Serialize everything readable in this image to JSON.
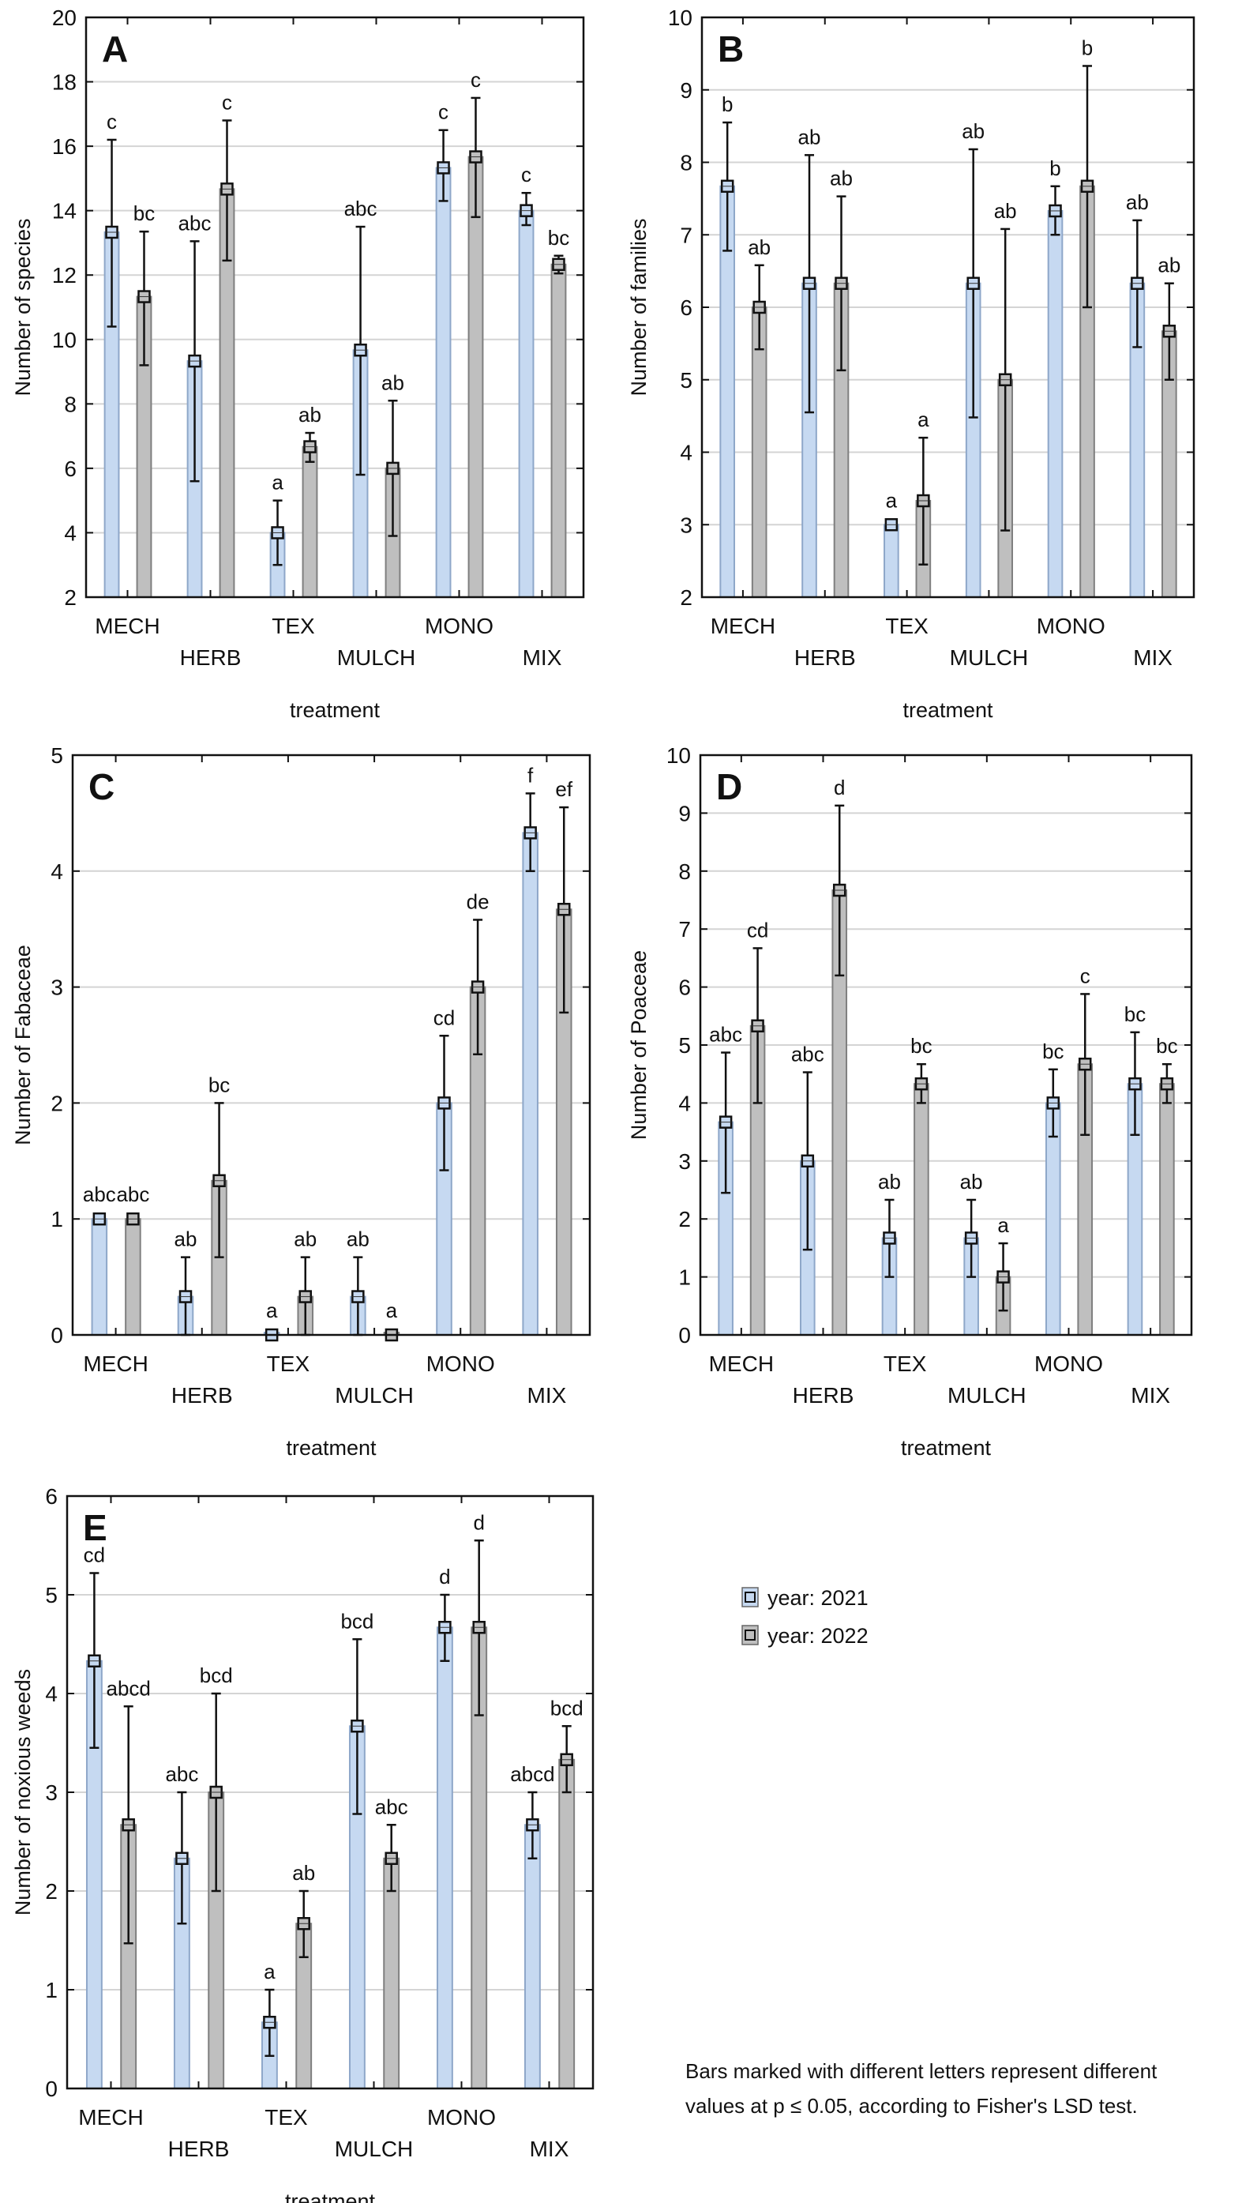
{
  "legend": {
    "items": [
      {
        "label": "year: 2021",
        "color": "#c6d9f1"
      },
      {
        "label": "year: 2022",
        "color": "#bfbfbf"
      }
    ]
  },
  "note": {
    "line1": "Bars marked with different letters represent different",
    "line2": "values at p ≤ 0.05, according to Fisher's LSD test."
  },
  "chart_data": [
    {
      "panel": "A",
      "type": "bar",
      "ylabel": "Number of species",
      "xlabel": "treatment",
      "ylim": [
        2,
        20
      ],
      "yticks": [
        "2",
        "4",
        "6",
        "8",
        "10",
        "12",
        "14",
        "16",
        "18",
        "20"
      ],
      "grid": true,
      "categories": [
        "MECH",
        "HERB",
        "TEX",
        "MULCH",
        "MONO",
        "MIX"
      ],
      "series": [
        {
          "name": "year: 2021",
          "values": [
            13.33,
            9.33,
            4.0,
            9.67,
            15.33,
            14.0
          ],
          "err_low": [
            10.4,
            5.6,
            3.0,
            5.8,
            14.3,
            13.55
          ],
          "err_high": [
            16.2,
            13.05,
            5.0,
            13.5,
            16.5,
            14.55
          ],
          "letters": [
            "c",
            "abc",
            "a",
            "abc",
            "c",
            "c"
          ]
        },
        {
          "name": "year: 2022",
          "values": [
            11.33,
            14.67,
            6.67,
            6.0,
            15.67,
            12.33
          ],
          "err_low": [
            9.2,
            12.45,
            6.2,
            3.9,
            13.8,
            12.05
          ],
          "err_high": [
            13.35,
            16.8,
            7.1,
            8.1,
            17.5,
            12.6
          ],
          "letters": [
            "bc",
            "c",
            "ab",
            "ab",
            "c",
            "bc"
          ]
        }
      ]
    },
    {
      "panel": "B",
      "type": "bar",
      "ylabel": "Number of families",
      "xlabel": "treatment",
      "ylim": [
        2,
        10
      ],
      "yticks": [
        "2",
        "3",
        "4",
        "5",
        "6",
        "7",
        "8",
        "9",
        "10"
      ],
      "grid": true,
      "categories": [
        "MECH",
        "HERB",
        "TEX",
        "MULCH",
        "MONO",
        "MIX"
      ],
      "series": [
        {
          "name": "year: 2021",
          "values": [
            7.67,
            6.33,
            3.0,
            6.33,
            7.33,
            6.33
          ],
          "err_low": [
            6.78,
            4.55,
            3.0,
            4.48,
            7.0,
            5.45
          ],
          "err_high": [
            8.55,
            8.1,
            3.0,
            8.18,
            7.67,
            7.2
          ],
          "letters": [
            "b",
            "ab",
            "a",
            "ab",
            "b",
            "ab"
          ]
        },
        {
          "name": "year: 2022",
          "values": [
            6.0,
            6.33,
            3.33,
            5.0,
            7.67,
            5.67
          ],
          "err_low": [
            5.42,
            5.13,
            2.45,
            2.92,
            6.0,
            5.0
          ],
          "err_high": [
            6.58,
            7.53,
            4.2,
            7.08,
            9.33,
            6.33
          ],
          "letters": [
            "ab",
            "ab",
            "a",
            "ab",
            "b",
            "ab"
          ]
        }
      ]
    },
    {
      "panel": "C",
      "type": "bar",
      "ylabel": "Number of  Fabaceae",
      "xlabel": "treatment",
      "ylim": [
        0,
        5
      ],
      "yticks": [
        "0",
        "1",
        "2",
        "3",
        "4",
        "5"
      ],
      "grid": true,
      "categories": [
        "MECH",
        "HERB",
        "TEX",
        "MULCH",
        "MONO",
        "MIX"
      ],
      "series": [
        {
          "name": "year: 2021",
          "values": [
            1.0,
            0.33,
            0.0,
            0.33,
            2.0,
            4.33
          ],
          "err_low": [
            1.0,
            0.0,
            0.0,
            0.0,
            1.42,
            4.0
          ],
          "err_high": [
            1.0,
            0.67,
            0.0,
            0.67,
            2.58,
            4.67
          ],
          "letters": [
            "abc",
            "ab",
            "a",
            "ab",
            "cd",
            "f"
          ]
        },
        {
          "name": "year: 2022",
          "values": [
            1.0,
            1.33,
            0.33,
            0.0,
            3.0,
            3.67
          ],
          "err_low": [
            1.0,
            0.67,
            0.0,
            0.0,
            2.42,
            2.78
          ],
          "err_high": [
            1.0,
            2.0,
            0.67,
            0.0,
            3.58,
            4.55
          ],
          "letters": [
            "abc",
            "bc",
            "ab",
            "a",
            "de",
            "ef"
          ]
        }
      ]
    },
    {
      "panel": "D",
      "type": "bar",
      "ylabel": "Number of  Poaceae",
      "xlabel": "treatment",
      "ylim": [
        0,
        10
      ],
      "yticks": [
        "0",
        "1",
        "2",
        "3",
        "4",
        "5",
        "6",
        "7",
        "8",
        "9",
        "10"
      ],
      "grid": true,
      "categories": [
        "MECH",
        "HERB",
        "TEX",
        "MULCH",
        "MONO",
        "MIX"
      ],
      "series": [
        {
          "name": "year: 2021",
          "values": [
            3.67,
            3.0,
            1.67,
            1.67,
            4.0,
            4.33
          ],
          "err_low": [
            2.45,
            1.47,
            1.0,
            1.0,
            3.42,
            3.45
          ],
          "err_high": [
            4.87,
            4.53,
            2.33,
            2.33,
            4.58,
            5.22
          ],
          "letters": [
            "abc",
            "abc",
            "ab",
            "ab",
            "bc",
            "bc"
          ]
        },
        {
          "name": "year: 2022",
          "values": [
            5.33,
            7.67,
            4.33,
            1.0,
            4.67,
            4.33
          ],
          "err_low": [
            4.0,
            6.2,
            4.0,
            0.42,
            3.45,
            4.0
          ],
          "err_high": [
            6.67,
            9.13,
            4.67,
            1.58,
            5.88,
            4.67
          ],
          "letters": [
            "cd",
            "d",
            "bc",
            "a",
            "c",
            "bc"
          ]
        }
      ]
    },
    {
      "panel": "E",
      "type": "bar",
      "ylabel": "Number of noxious weeds",
      "xlabel": "treatment",
      "ylim": [
        0,
        6
      ],
      "yticks": [
        "0",
        "1",
        "2",
        "3",
        "4",
        "5",
        "6"
      ],
      "grid": true,
      "categories": [
        "MECH",
        "HERB",
        "TEX",
        "MULCH",
        "MONO",
        "MIX"
      ],
      "series": [
        {
          "name": "year: 2021",
          "values": [
            4.33,
            2.33,
            0.67,
            3.67,
            4.67,
            2.67
          ],
          "err_low": [
            3.45,
            1.67,
            0.33,
            2.78,
            4.33,
            2.33
          ],
          "err_high": [
            5.22,
            3.0,
            1.0,
            4.55,
            5.0,
            3.0
          ],
          "letters": [
            "cd",
            "abc",
            "a",
            "bcd",
            "d",
            "abcd"
          ]
        },
        {
          "name": "year: 2022",
          "values": [
            2.67,
            3.0,
            1.67,
            2.33,
            4.67,
            3.33
          ],
          "err_low": [
            1.47,
            2.0,
            1.33,
            2.0,
            3.78,
            3.0
          ],
          "err_high": [
            3.87,
            4.0,
            2.0,
            2.67,
            5.55,
            3.67
          ],
          "letters": [
            "abcd",
            "bcd",
            "ab",
            "abc",
            "d",
            "bcd"
          ]
        }
      ]
    }
  ]
}
